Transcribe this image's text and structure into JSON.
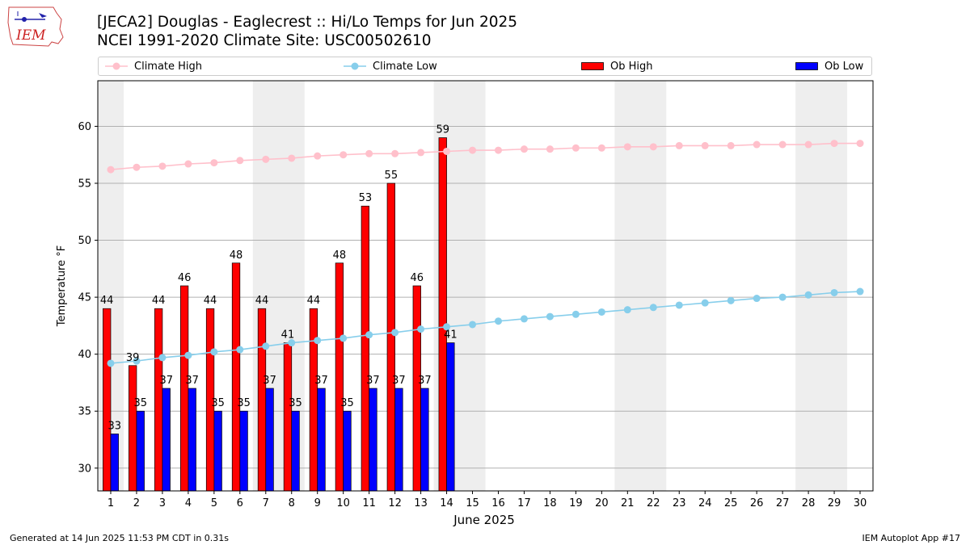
{
  "header": {
    "logo_text": "IEM",
    "title_line1": "[JECA2] Douglas - Eaglecrest :: Hi/Lo Temps for Jun 2025",
    "title_line2": "NCEI 1991-2020 Climate Site: USC00502610"
  },
  "legend": {
    "position": "top",
    "items": [
      {
        "label": "Climate High",
        "color": "#ffc0cb",
        "style": "line-marker"
      },
      {
        "label": "Climate Low",
        "color": "#87ceeb",
        "style": "line-marker"
      },
      {
        "label": "Ob High",
        "color": "#ff0000",
        "style": "bar"
      },
      {
        "label": "Ob Low",
        "color": "#0000ff",
        "style": "bar"
      }
    ]
  },
  "footer": {
    "left": "Generated at 14 Jun 2025 11:53 PM CDT in 0.31s",
    "right": "IEM Autoplot App #17"
  },
  "chart_data": {
    "type": "bar",
    "title": "[JECA2] Douglas - Eaglecrest :: Hi/Lo Temps for Jun 2025",
    "subtitle": "NCEI 1991-2020 Climate Site: USC00502610",
    "xlabel": "June 2025",
    "ylabel": "Temperature °F",
    "xlim": [
      0.5,
      30.5
    ],
    "ylim": [
      28,
      64
    ],
    "yticks": [
      30,
      35,
      40,
      45,
      50,
      55,
      60
    ],
    "grid": "horizontal",
    "days": [
      1,
      2,
      3,
      4,
      5,
      6,
      7,
      8,
      9,
      10,
      11,
      12,
      13,
      14,
      15,
      16,
      17,
      18,
      19,
      20,
      21,
      22,
      23,
      24,
      25,
      26,
      27,
      28,
      29,
      30
    ],
    "weekend_shading": [
      [
        0.5,
        1.5
      ],
      [
        6.5,
        8.5
      ],
      [
        13.5,
        15.5
      ],
      [
        20.5,
        22.5
      ],
      [
        27.5,
        29.5
      ]
    ],
    "series": [
      {
        "name": "Ob High",
        "kind": "bar",
        "color": "#ff0000",
        "values": [
          44,
          39,
          44,
          46,
          44,
          48,
          44,
          41,
          44,
          48,
          53,
          55,
          46,
          59
        ]
      },
      {
        "name": "Ob Low",
        "kind": "bar",
        "color": "#0000ff",
        "values": [
          33,
          35,
          37,
          37,
          35,
          35,
          37,
          35,
          37,
          35,
          37,
          37,
          37,
          41
        ]
      },
      {
        "name": "Climate High",
        "kind": "line",
        "color": "#ffc0cb",
        "values": [
          56.2,
          56.4,
          56.5,
          56.7,
          56.8,
          57.0,
          57.1,
          57.2,
          57.4,
          57.5,
          57.6,
          57.6,
          57.7,
          57.8,
          57.9,
          57.9,
          58.0,
          58.0,
          58.1,
          58.1,
          58.2,
          58.2,
          58.3,
          58.3,
          58.3,
          58.4,
          58.4,
          58.4,
          58.5,
          58.5
        ]
      },
      {
        "name": "Climate Low",
        "kind": "line",
        "color": "#87ceeb",
        "values": [
          39.2,
          39.4,
          39.7,
          39.9,
          40.2,
          40.4,
          40.7,
          41.0,
          41.2,
          41.4,
          41.7,
          41.9,
          42.2,
          42.4,
          42.6,
          42.9,
          43.1,
          43.3,
          43.5,
          43.7,
          43.9,
          44.1,
          44.3,
          44.5,
          44.7,
          44.9,
          45.0,
          45.2,
          45.4,
          45.5
        ]
      }
    ]
  }
}
